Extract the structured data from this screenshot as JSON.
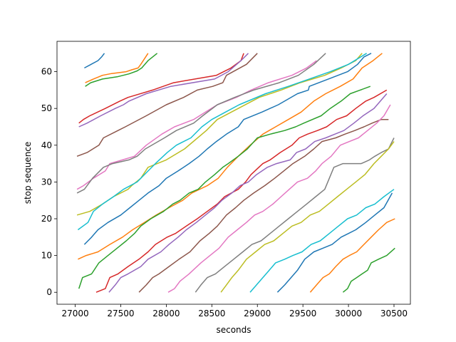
{
  "chart_data": {
    "type": "line",
    "xlabel": "seconds",
    "ylabel": "stop sequence",
    "xlim": [
      26800,
      30680
    ],
    "ylim": [
      -3.25,
      68.25
    ],
    "xticks": [
      27000,
      27500,
      28000,
      28500,
      29000,
      29500,
      30000,
      30500
    ],
    "yticks": [
      0,
      10,
      20,
      30,
      40,
      50,
      60
    ],
    "grid": false,
    "legend": "none",
    "series": [
      {
        "color": "#1f77b4",
        "x": [
          27100,
          27250,
          27290,
          27320
        ],
        "y": [
          61,
          63,
          64,
          65
        ]
      },
      {
        "color": "#ff7f0e",
        "x": [
          27110,
          27200,
          27300,
          27400,
          27560,
          27620,
          27690,
          27720,
          27800
        ],
        "y": [
          57,
          58,
          59,
          59.5,
          60,
          60.5,
          61,
          62,
          65
        ]
      },
      {
        "color": "#2ca02c",
        "x": [
          27110,
          27170,
          27300,
          27460,
          27590,
          27680,
          27730,
          27800,
          27900
        ],
        "y": [
          56,
          57,
          58,
          58.6,
          59.4,
          60.2,
          61,
          63,
          65
        ]
      },
      {
        "color": "#d62728",
        "x": [
          27040,
          27090,
          27160,
          27330,
          27490,
          27580,
          27850,
          28080,
          28550,
          28710,
          28820,
          28850
        ],
        "y": [
          46,
          47,
          48,
          50,
          52,
          53,
          55,
          57,
          59,
          61,
          63,
          65
        ]
      },
      {
        "color": "#9467bd",
        "x": [
          27040,
          27130,
          27280,
          27440,
          27530,
          27590,
          27780,
          28050,
          28530,
          28680,
          28820,
          28900
        ],
        "y": [
          45,
          46,
          48,
          50,
          51,
          52,
          54,
          56,
          58,
          60,
          63,
          65
        ]
      },
      {
        "color": "#8c564b",
        "x": [
          27020,
          27130,
          27260,
          27310,
          27470,
          27550,
          27780,
          28000,
          28190,
          28340,
          28510,
          28620,
          28660,
          28880,
          29000
        ],
        "y": [
          37,
          38,
          40,
          42,
          44,
          45,
          48,
          51,
          53,
          55,
          56,
          57,
          59,
          62,
          65
        ]
      },
      {
        "color": "#e377c2",
        "x": [
          27020,
          27090,
          27200,
          27330,
          27380,
          27520,
          27650,
          27780,
          27950,
          28090,
          28300,
          28430,
          28560,
          28770,
          28930,
          29120,
          29380,
          29540,
          29650
        ],
        "y": [
          28,
          29,
          31,
          33,
          35,
          36,
          37,
          40,
          43,
          45,
          47,
          49,
          51,
          53,
          55,
          57,
          59,
          61,
          63
        ]
      },
      {
        "color": "#7f7f7f",
        "x": [
          27020,
          27100,
          27190,
          27310,
          27410,
          27590,
          27680,
          27770,
          27980,
          28110,
          28300,
          28400,
          28560,
          28750,
          28960,
          29240,
          29450,
          29620,
          29750
        ],
        "y": [
          27,
          28,
          31,
          34,
          35,
          36,
          37,
          39,
          42,
          44,
          46,
          48,
          51,
          53,
          55,
          57,
          59,
          62,
          65
        ]
      },
      {
        "color": "#bcbd22",
        "x": [
          27020,
          27160,
          27300,
          27420,
          27580,
          27620,
          27720,
          27800,
          28000,
          28200,
          28440,
          28560,
          28790,
          29020,
          29260,
          29470,
          29740,
          29920,
          30080,
          30150
        ],
        "y": [
          21,
          22,
          24,
          26,
          28,
          29,
          31,
          34,
          36,
          39,
          44,
          47,
          50,
          53,
          55,
          57,
          59,
          61,
          63,
          65
        ]
      },
      {
        "color": "#17becf",
        "x": [
          27030,
          27140,
          27200,
          27300,
          27420,
          27530,
          27680,
          27760,
          27880,
          28010,
          28110,
          28270,
          28390,
          28500,
          28650,
          28800,
          29090,
          29340,
          29570,
          29800,
          30000,
          30200
        ],
        "y": [
          17,
          19,
          22,
          24,
          26,
          28,
          30,
          32,
          35,
          38,
          40,
          42,
          45,
          47,
          49,
          51,
          54,
          56,
          58,
          60,
          62,
          65
        ]
      },
      {
        "color": "#1f77b4",
        "x": [
          27100,
          27180,
          27250,
          27360,
          27500,
          27600,
          27700,
          27800,
          27920,
          28000,
          28130,
          28250,
          28360,
          28450,
          28550,
          28660,
          28790,
          28850,
          29050,
          29230,
          29440,
          29560,
          29570,
          29780,
          29990,
          30100,
          30170,
          30250
        ],
        "y": [
          13,
          15,
          17,
          19,
          21,
          23,
          25,
          27,
          29,
          31,
          33,
          35,
          37,
          39,
          41,
          43,
          45,
          47,
          49,
          51,
          54,
          55,
          56,
          58,
          60,
          62,
          64,
          65
        ]
      },
      {
        "color": "#ff7f0e",
        "x": [
          27030,
          27120,
          27250,
          27380,
          27520,
          27630,
          27760,
          27890,
          28030,
          28180,
          28280,
          28450,
          28570,
          28670,
          28790,
          28920,
          29060,
          29200,
          29340,
          29480,
          29620,
          29750,
          29910,
          30050,
          30150,
          30270,
          30370
        ],
        "y": [
          9,
          10,
          11,
          13,
          15,
          17,
          19,
          21,
          23,
          25,
          27,
          29,
          31,
          34,
          37,
          40,
          43,
          45,
          47,
          49,
          52,
          54,
          56,
          58,
          61,
          63,
          65
        ]
      },
      {
        "color": "#2ca02c",
        "x": [
          27040,
          27080,
          27180,
          27260,
          27360,
          27460,
          27560,
          27650,
          27720,
          27830,
          27970,
          28070,
          28150,
          28250,
          28350,
          28430,
          28530,
          28620,
          28680,
          28790,
          28890,
          29000,
          29140,
          29300,
          29420,
          29510,
          29700,
          29800,
          29920,
          30020,
          30240
        ],
        "y": [
          1,
          4,
          5,
          8,
          10,
          12,
          14,
          16,
          18,
          20,
          22,
          24,
          25,
          27,
          28,
          30,
          32,
          34,
          35,
          37,
          39,
          42,
          43,
          44,
          45,
          46,
          48,
          50,
          52,
          54,
          56
        ]
      },
      {
        "color": "#d62728",
        "x": [
          27230,
          27330,
          27380,
          27470,
          27580,
          27700,
          27800,
          27880,
          28010,
          28100,
          28220,
          28340,
          28450,
          28560,
          28640,
          28790,
          28870,
          28930,
          29060,
          29140,
          29250,
          29380,
          29460,
          29550,
          29660,
          29760,
          29870,
          29980,
          30080,
          30190,
          30280,
          30420
        ],
        "y": [
          0,
          1,
          4,
          5,
          7,
          9,
          11,
          13,
          15,
          16,
          18,
          20,
          22,
          24,
          26,
          28,
          30,
          32,
          35,
          36,
          38,
          40,
          42,
          43,
          44,
          45,
          47,
          48,
          50,
          52,
          53,
          55
        ]
      },
      {
        "color": "#9467bd",
        "x": [
          27370,
          27440,
          27500,
          27580,
          27720,
          27800,
          27940,
          28030,
          28130,
          28220,
          28330,
          28430,
          28530,
          28610,
          28720,
          28810,
          28900,
          28990,
          29110,
          29210,
          29360,
          29430,
          29530,
          29630,
          29750,
          29850,
          29950,
          30060,
          30160,
          30280,
          30420
        ],
        "y": [
          0,
          2,
          4,
          5,
          7,
          9,
          11,
          13,
          15,
          17,
          19,
          21,
          23,
          25,
          27,
          29,
          30,
          32,
          34,
          35,
          36,
          38,
          39,
          41,
          42,
          43,
          44,
          46,
          48,
          50,
          54
        ]
      },
      {
        "color": "#8c564b",
        "x": [
          27700,
          27780,
          27850,
          27920,
          28030,
          28140,
          28260,
          28370,
          28470,
          28560,
          28660,
          28760,
          28850,
          28960,
          29080,
          29190,
          29290,
          29390,
          29520,
          29620,
          29710,
          29860,
          29960,
          30070,
          30170,
          30260,
          30360,
          30440
        ],
        "y": [
          0,
          2,
          4,
          5,
          7,
          9,
          11,
          14,
          16,
          18,
          21,
          23,
          25,
          27,
          29,
          31,
          33,
          35,
          37,
          39,
          41,
          42,
          43,
          44,
          45,
          46,
          47,
          47
        ]
      },
      {
        "color": "#e377c2",
        "x": [
          28020,
          28090,
          28150,
          28250,
          28380,
          28480,
          28580,
          28680,
          28780,
          28880,
          28970,
          29060,
          29170,
          29260,
          29350,
          29440,
          29550,
          29640,
          29710,
          29810,
          29910,
          30010,
          30110,
          30210,
          30310,
          30390,
          30460
        ],
        "y": [
          0,
          1,
          3,
          5,
          8,
          10,
          12,
          15,
          17,
          19,
          21,
          22,
          24,
          26,
          28,
          30,
          31,
          33,
          35,
          37,
          40,
          41,
          42,
          44,
          46,
          48,
          51
        ]
      },
      {
        "color": "#7f7f7f",
        "x": [
          28320,
          28380,
          28450,
          28540,
          28640,
          28740,
          28840,
          28940,
          29040,
          29140,
          29240,
          29340,
          29440,
          29540,
          29640,
          29740,
          29840,
          29940,
          30040,
          30140,
          30230,
          30290,
          30360,
          30440,
          30500
        ],
        "y": [
          0,
          2,
          4,
          5,
          7,
          9,
          11,
          13,
          14,
          16,
          18,
          20,
          22,
          24,
          26,
          28,
          34,
          35,
          35,
          35,
          36,
          37,
          38,
          39,
          42
        ]
      },
      {
        "color": "#bcbd22",
        "x": [
          28600,
          28660,
          28720,
          28790,
          28880,
          28980,
          29080,
          29180,
          29280,
          29380,
          29480,
          29580,
          29680,
          29780,
          29880,
          29980,
          30080,
          30180,
          30280,
          30360,
          30440,
          30500
        ],
        "y": [
          0,
          2,
          4,
          6,
          9,
          11,
          13,
          14,
          16,
          18,
          19,
          21,
          22,
          24,
          26,
          28,
          30,
          32,
          35,
          37,
          39,
          41
        ]
      },
      {
        "color": "#17becf",
        "x": [
          28920,
          28990,
          29060,
          29130,
          29200,
          29300,
          29390,
          29490,
          29590,
          29690,
          29790,
          29890,
          29990,
          30090,
          30190,
          30290,
          30390,
          30500
        ],
        "y": [
          0,
          2,
          4,
          6,
          8,
          9,
          10,
          11,
          13,
          14,
          16,
          18,
          20,
          21,
          23,
          24,
          26,
          28
        ]
      },
      {
        "color": "#1f77b4",
        "x": [
          29220,
          29300,
          29370,
          29440,
          29520,
          29620,
          29720,
          29820,
          29920,
          30000,
          30080,
          30190,
          30290,
          30390,
          30480
        ],
        "y": [
          0,
          2,
          4,
          6,
          9,
          11,
          12,
          13,
          15,
          16,
          17,
          19,
          21,
          23,
          27
        ]
      },
      {
        "color": "#ff7f0e",
        "x": [
          29580,
          29650,
          29720,
          29790,
          29860,
          29940,
          30010,
          30090,
          30170,
          30250,
          30330,
          30420,
          30510
        ],
        "y": [
          0,
          2,
          4,
          5,
          7,
          9,
          10,
          11,
          13,
          15,
          17,
          19,
          20
        ]
      },
      {
        "color": "#2ca02c",
        "x": [
          29940,
          29990,
          30030,
          30090,
          30150,
          30210,
          30250,
          30330,
          30420,
          30510
        ],
        "y": [
          0,
          1,
          3,
          4,
          5,
          6,
          8,
          9,
          10,
          12
        ]
      }
    ]
  }
}
